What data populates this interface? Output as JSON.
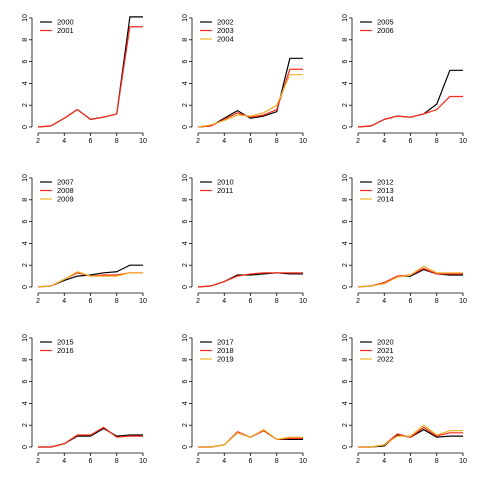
{
  "colors": {
    "black": "#000000",
    "red": "#ff2a1a",
    "orange": "#f5b02a"
  },
  "chart_data": [
    {
      "type": "line",
      "xlim": [
        2,
        10
      ],
      "ylim": [
        0,
        10
      ],
      "x_ticks": [
        2,
        4,
        6,
        8,
        10
      ],
      "y_ticks": [
        0,
        2,
        4,
        6,
        8,
        10
      ],
      "x": [
        2,
        3,
        4,
        5,
        6,
        7,
        8,
        9,
        10
      ],
      "legend_position": "top-left",
      "series": [
        {
          "name": "2000",
          "color": "#000000",
          "values": [
            0.0,
            0.1,
            0.8,
            1.6,
            0.7,
            0.9,
            1.2,
            10.1,
            10.1
          ]
        },
        {
          "name": "2001",
          "color": "#ff2a1a",
          "values": [
            0.0,
            0.1,
            0.8,
            1.6,
            0.7,
            0.9,
            1.2,
            9.2,
            9.2
          ]
        }
      ]
    },
    {
      "type": "line",
      "xlim": [
        2,
        10
      ],
      "ylim": [
        0,
        10
      ],
      "x_ticks": [
        2,
        4,
        6,
        8,
        10
      ],
      "y_ticks": [
        0,
        2,
        4,
        6,
        8,
        10
      ],
      "x": [
        2,
        3,
        4,
        5,
        6,
        7,
        8,
        9,
        10
      ],
      "legend_position": "top-left",
      "series": [
        {
          "name": "2002",
          "color": "#000000",
          "values": [
            0.0,
            0.1,
            0.8,
            1.5,
            0.8,
            1.0,
            1.4,
            6.3,
            6.3
          ]
        },
        {
          "name": "2003",
          "color": "#ff2a1a",
          "values": [
            0.0,
            0.1,
            0.7,
            1.3,
            0.9,
            1.1,
            1.6,
            5.3,
            5.3
          ]
        },
        {
          "name": "2004",
          "color": "#f5b02a",
          "values": [
            0.0,
            0.2,
            0.6,
            1.1,
            1.0,
            1.3,
            2.0,
            4.8,
            4.8
          ]
        }
      ]
    },
    {
      "type": "line",
      "xlim": [
        2,
        10
      ],
      "ylim": [
        0,
        10
      ],
      "x_ticks": [
        2,
        4,
        6,
        8,
        10
      ],
      "y_ticks": [
        0,
        2,
        4,
        6,
        8,
        10
      ],
      "x": [
        2,
        3,
        4,
        5,
        6,
        7,
        8,
        9,
        10
      ],
      "legend_position": "top-left",
      "series": [
        {
          "name": "2005",
          "color": "#000000",
          "values": [
            0.0,
            0.1,
            0.7,
            1.0,
            0.9,
            1.2,
            2.1,
            5.2,
            5.2
          ]
        },
        {
          "name": "2006",
          "color": "#ff2a1a",
          "values": [
            0.0,
            0.1,
            0.7,
            1.0,
            0.9,
            1.2,
            1.6,
            2.8,
            2.8
          ]
        }
      ]
    },
    {
      "type": "line",
      "xlim": [
        2,
        10
      ],
      "ylim": [
        0,
        10
      ],
      "x_ticks": [
        2,
        4,
        6,
        8,
        10
      ],
      "y_ticks": [
        0,
        2,
        4,
        6,
        8,
        10
      ],
      "x": [
        2,
        3,
        4,
        5,
        6,
        7,
        8,
        9,
        10
      ],
      "legend_position": "top-left",
      "series": [
        {
          "name": "2007",
          "color": "#000000",
          "values": [
            0.0,
            0.1,
            0.6,
            1.0,
            1.1,
            1.3,
            1.4,
            2.0,
            2.0
          ]
        },
        {
          "name": "2008",
          "color": "#ff2a1a",
          "values": [
            0.0,
            0.1,
            0.7,
            1.3,
            1.0,
            1.1,
            1.1,
            1.3,
            1.3
          ]
        },
        {
          "name": "2009",
          "color": "#f5b02a",
          "values": [
            0.0,
            0.1,
            0.7,
            1.4,
            1.0,
            1.0,
            1.0,
            1.3,
            1.3
          ]
        }
      ]
    },
    {
      "type": "line",
      "xlim": [
        2,
        10
      ],
      "ylim": [
        0,
        10
      ],
      "x_ticks": [
        2,
        4,
        6,
        8,
        10
      ],
      "y_ticks": [
        0,
        2,
        4,
        6,
        8,
        10
      ],
      "x": [
        2,
        3,
        4,
        5,
        6,
        7,
        8,
        9,
        10
      ],
      "legend_position": "top-left",
      "series": [
        {
          "name": "2010",
          "color": "#000000",
          "values": [
            0.0,
            0.1,
            0.5,
            1.1,
            1.1,
            1.2,
            1.3,
            1.2,
            1.2
          ]
        },
        {
          "name": "2011",
          "color": "#ff2a1a",
          "values": [
            0.0,
            0.1,
            0.5,
            1.0,
            1.2,
            1.3,
            1.3,
            1.3,
            1.3
          ]
        }
      ]
    },
    {
      "type": "line",
      "xlim": [
        2,
        10
      ],
      "ylim": [
        0,
        10
      ],
      "x_ticks": [
        2,
        4,
        6,
        8,
        10
      ],
      "y_ticks": [
        0,
        2,
        4,
        6,
        8,
        10
      ],
      "x": [
        2,
        3,
        4,
        5,
        6,
        7,
        8,
        9,
        10
      ],
      "legend_position": "top-left",
      "series": [
        {
          "name": "2012",
          "color": "#000000",
          "values": [
            0.0,
            0.1,
            0.4,
            1.0,
            1.0,
            1.6,
            1.2,
            1.1,
            1.1
          ]
        },
        {
          "name": "2013",
          "color": "#ff2a1a",
          "values": [
            0.0,
            0.1,
            0.4,
            1.0,
            1.1,
            1.7,
            1.2,
            1.2,
            1.2
          ]
        },
        {
          "name": "2014",
          "color": "#f5b02a",
          "values": [
            0.0,
            0.1,
            0.3,
            0.9,
            1.1,
            1.9,
            1.3,
            1.3,
            1.3
          ]
        }
      ]
    },
    {
      "type": "line",
      "xlim": [
        2,
        10
      ],
      "ylim": [
        0,
        10
      ],
      "x_ticks": [
        2,
        4,
        6,
        8,
        10
      ],
      "y_ticks": [
        0,
        2,
        4,
        6,
        8,
        10
      ],
      "x": [
        2,
        3,
        4,
        5,
        6,
        7,
        8,
        9,
        10
      ],
      "legend_position": "top-left",
      "series": [
        {
          "name": "2015",
          "color": "#000000",
          "values": [
            0.0,
            0.0,
            0.3,
            1.0,
            1.0,
            1.7,
            1.0,
            1.1,
            1.1
          ]
        },
        {
          "name": "2016",
          "color": "#ff2a1a",
          "values": [
            0.0,
            0.0,
            0.3,
            1.1,
            1.1,
            1.8,
            0.9,
            1.0,
            1.0
          ]
        }
      ]
    },
    {
      "type": "line",
      "xlim": [
        2,
        10
      ],
      "ylim": [
        0,
        10
      ],
      "x_ticks": [
        2,
        4,
        6,
        8,
        10
      ],
      "y_ticks": [
        0,
        2,
        4,
        6,
        8,
        10
      ],
      "x": [
        2,
        3,
        4,
        5,
        6,
        7,
        8,
        9,
        10
      ],
      "legend_position": "top-left",
      "series": [
        {
          "name": "2017",
          "color": "#000000",
          "values": [
            0.0,
            0.0,
            0.2,
            1.3,
            0.9,
            1.5,
            0.7,
            0.7,
            0.7
          ]
        },
        {
          "name": "2018",
          "color": "#ff2a1a",
          "values": [
            0.0,
            0.0,
            0.2,
            1.4,
            0.9,
            1.5,
            0.7,
            0.8,
            0.8
          ]
        },
        {
          "name": "2019",
          "color": "#f5b02a",
          "values": [
            0.0,
            0.0,
            0.2,
            1.3,
            0.9,
            1.6,
            0.7,
            0.9,
            0.9
          ]
        }
      ]
    },
    {
      "type": "line",
      "xlim": [
        2,
        10
      ],
      "ylim": [
        0,
        10
      ],
      "x_ticks": [
        2,
        4,
        6,
        8,
        10
      ],
      "y_ticks": [
        0,
        2,
        4,
        6,
        8,
        10
      ],
      "x": [
        2,
        3,
        4,
        5,
        6,
        7,
        8,
        9,
        10
      ],
      "legend_position": "top-left",
      "series": [
        {
          "name": "2020",
          "color": "#000000",
          "values": [
            0.0,
            0.0,
            0.1,
            1.1,
            0.9,
            1.6,
            0.9,
            1.0,
            1.0
          ]
        },
        {
          "name": "2021",
          "color": "#ff2a1a",
          "values": [
            0.0,
            0.0,
            0.2,
            1.2,
            0.9,
            1.8,
            1.0,
            1.3,
            1.3
          ]
        },
        {
          "name": "2022",
          "color": "#f5b02a",
          "values": [
            0.0,
            0.0,
            0.2,
            1.0,
            1.0,
            2.0,
            1.1,
            1.5,
            1.5
          ]
        }
      ]
    }
  ]
}
